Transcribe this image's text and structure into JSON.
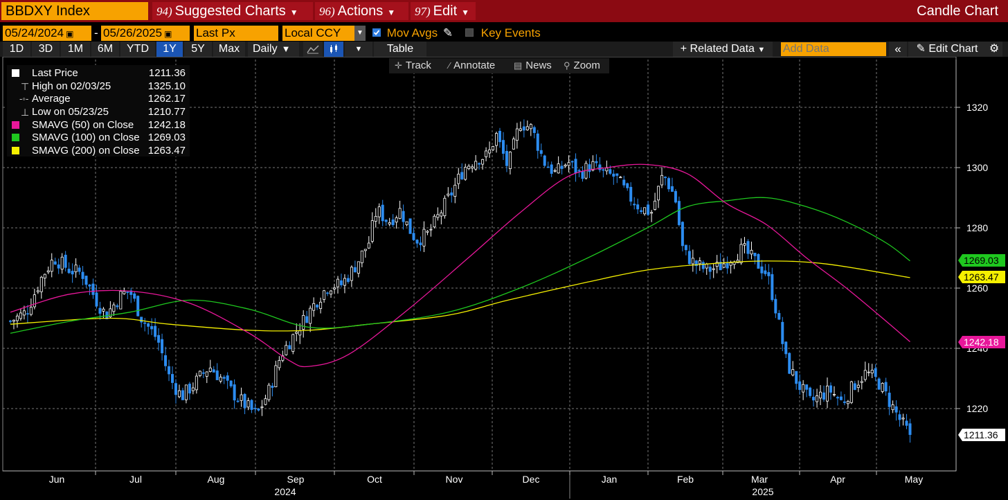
{
  "titlebar": {
    "ticker": "BBDXY Index",
    "menus": [
      {
        "num": "94)",
        "label": "Suggested Charts"
      },
      {
        "num": "96)",
        "label": "Actions"
      },
      {
        "num": "97)",
        "label": "Edit"
      }
    ],
    "chart_kind": "Candle Chart"
  },
  "controls": {
    "start_date": "05/24/2024",
    "end_date": "05/26/2025",
    "field": "Last Px",
    "currency": "Local CCY",
    "mov_avgs_label": "Mov Avgs",
    "mov_avgs_checked": true,
    "key_events_label": "Key Events",
    "key_events_checked": false
  },
  "range_buttons": [
    "1D",
    "3D",
    "1M",
    "6M",
    "YTD",
    "1Y",
    "5Y",
    "Max"
  ],
  "selected_range": "1Y",
  "periodicity": "Daily",
  "table_label": "Table",
  "related_data_label": "Related Data",
  "add_data_placeholder": "Add Data",
  "edit_chart_label": "Edit Chart",
  "chart_tools": [
    "Track",
    "Annotate",
    "News",
    "Zoom"
  ],
  "legend": [
    {
      "label": "Last Price",
      "value": "1211.36",
      "color": "#ffffff",
      "icon": "square-icon"
    },
    {
      "label": "High on 02/03/25",
      "value": "1325.10",
      "color": "#ffffff",
      "icon": "high-marker-icon"
    },
    {
      "label": "Average",
      "value": "1262.17",
      "color": "#ffffff",
      "icon": "average-line-icon"
    },
    {
      "label": "Low on 05/23/25",
      "value": "1210.77",
      "color": "#ffffff",
      "icon": "low-marker-icon"
    },
    {
      "label": "SMAVG (50)  on Close",
      "value": "1242.18",
      "color": "#e8179a",
      "icon": "square-icon"
    },
    {
      "label": "SMAVG (100)  on Close",
      "value": "1269.03",
      "color": "#1fc81f",
      "icon": "square-icon"
    },
    {
      "label": "SMAVG (200)  on Close",
      "value": "1263.47",
      "color": "#f5f000",
      "icon": "square-icon"
    }
  ],
  "chart_data": {
    "type": "candlestick",
    "title": "BBDXY Index",
    "y_ticks": [
      "1220",
      "1240",
      "1260",
      "1280",
      "1300",
      "1320"
    ],
    "ylim": [
      1205,
      1330
    ],
    "x_months": [
      "Jun",
      "Jul",
      "Aug",
      "Sep",
      "Oct",
      "Nov",
      "Dec",
      "Jan",
      "Feb",
      "Mar",
      "Apr",
      "May"
    ],
    "x_years": [
      "2024",
      "2025"
    ],
    "price_close_path": [
      [
        0,
        1249
      ],
      [
        0.4,
        1252
      ],
      [
        0.8,
        1264
      ],
      [
        1.1,
        1270
      ],
      [
        1.5,
        1266
      ],
      [
        1.8,
        1265
      ],
      [
        2.2,
        1255
      ],
      [
        2.4,
        1251
      ],
      [
        2.8,
        1258
      ],
      [
        3.0,
        1259
      ],
      [
        3.3,
        1250
      ],
      [
        3.7,
        1243
      ],
      [
        4.0,
        1230
      ],
      [
        4.3,
        1224
      ],
      [
        4.6,
        1228
      ],
      [
        5.0,
        1234
      ],
      [
        5.3,
        1230
      ],
      [
        5.6,
        1225
      ],
      [
        6.0,
        1220
      ],
      [
        6.2,
        1218
      ],
      [
        6.5,
        1226
      ],
      [
        6.8,
        1238
      ],
      [
        7.1,
        1244
      ],
      [
        7.4,
        1250
      ],
      [
        7.7,
        1256
      ],
      [
        8.0,
        1261
      ],
      [
        8.3,
        1261
      ],
      [
        8.6,
        1266
      ],
      [
        9.0,
        1275
      ],
      [
        9.2,
        1286
      ],
      [
        9.5,
        1282
      ],
      [
        9.8,
        1286
      ],
      [
        10.0,
        1280
      ],
      [
        10.2,
        1276
      ],
      [
        10.5,
        1278
      ],
      [
        10.8,
        1285
      ],
      [
        11.1,
        1292
      ],
      [
        11.4,
        1300
      ],
      [
        11.7,
        1303
      ],
      [
        12.0,
        1304
      ],
      [
        12.2,
        1311
      ],
      [
        12.5,
        1300
      ],
      [
        12.8,
        1315
      ],
      [
        13.1,
        1313
      ],
      [
        13.4,
        1302
      ],
      [
        13.7,
        1298
      ],
      [
        14.0,
        1302
      ],
      [
        14.3,
        1298
      ],
      [
        14.6,
        1301
      ],
      [
        14.9,
        1298
      ],
      [
        15.2,
        1297
      ],
      [
        15.5,
        1291
      ],
      [
        15.8,
        1287
      ],
      [
        16.1,
        1285
      ],
      [
        16.4,
        1298
      ],
      [
        16.7,
        1290
      ],
      [
        16.9,
        1272
      ],
      [
        17.2,
        1268
      ],
      [
        17.5,
        1266
      ],
      [
        17.8,
        1267
      ],
      [
        18.1,
        1270
      ],
      [
        18.4,
        1273
      ],
      [
        18.7,
        1269
      ],
      [
        19.0,
        1265
      ],
      [
        19.2,
        1255
      ],
      [
        19.5,
        1235
      ],
      [
        19.8,
        1228
      ],
      [
        20.1,
        1222
      ],
      [
        20.3,
        1224
      ],
      [
        20.6,
        1226
      ],
      [
        20.9,
        1222
      ],
      [
        21.2,
        1228
      ],
      [
        21.5,
        1232
      ],
      [
        21.8,
        1229
      ],
      [
        22.1,
        1222
      ],
      [
        22.4,
        1215
      ],
      [
        22.6,
        1211.36
      ]
    ],
    "sma50_path": [
      [
        0,
        1252
      ],
      [
        1.5,
        1258
      ],
      [
        3.0,
        1259
      ],
      [
        4.5,
        1255
      ],
      [
        6.0,
        1245
      ],
      [
        7.0,
        1236
      ],
      [
        7.5,
        1234
      ],
      [
        8.5,
        1238
      ],
      [
        10.0,
        1253
      ],
      [
        11.5,
        1270
      ],
      [
        12.8,
        1285
      ],
      [
        14.0,
        1297
      ],
      [
        15.0,
        1300
      ],
      [
        16.0,
        1301
      ],
      [
        17.0,
        1298
      ],
      [
        18.0,
        1288
      ],
      [
        19.0,
        1281
      ],
      [
        20.0,
        1270
      ],
      [
        21.0,
        1260
      ],
      [
        22.0,
        1249
      ],
      [
        22.6,
        1242.18
      ]
    ],
    "sma100_path": [
      [
        0,
        1245
      ],
      [
        1.5,
        1249
      ],
      [
        3.0,
        1252
      ],
      [
        4.5,
        1256
      ],
      [
        6.0,
        1253
      ],
      [
        7.5,
        1247
      ],
      [
        9.0,
        1248
      ],
      [
        11.0,
        1252
      ],
      [
        12.8,
        1260
      ],
      [
        14.5,
        1270
      ],
      [
        16.0,
        1280
      ],
      [
        17.0,
        1287
      ],
      [
        18.0,
        1289
      ],
      [
        19.0,
        1290
      ],
      [
        20.0,
        1287
      ],
      [
        21.0,
        1282
      ],
      [
        22.0,
        1275
      ],
      [
        22.6,
        1269.03
      ]
    ],
    "sma200_path": [
      [
        0,
        1248
      ],
      [
        2.5,
        1250
      ],
      [
        4.0,
        1248
      ],
      [
        6.0,
        1246
      ],
      [
        7.5,
        1246
      ],
      [
        9.0,
        1248
      ],
      [
        11.0,
        1251
      ],
      [
        12.5,
        1256
      ],
      [
        14.5,
        1262
      ],
      [
        16.0,
        1266
      ],
      [
        17.5,
        1268
      ],
      [
        19.0,
        1269
      ],
      [
        20.5,
        1268
      ],
      [
        22.6,
        1263.47
      ]
    ],
    "right_labels": [
      {
        "value": "1269.03",
        "color": "#1fc81f",
        "text_color": "#000000"
      },
      {
        "value": "1263.47",
        "color": "#f5f000",
        "text_color": "#000000"
      },
      {
        "value": "1242.18",
        "color": "#e8179a",
        "text_color": "#ffffff"
      },
      {
        "value": "1211.36",
        "color": "#ffffff",
        "text_color": "#000000"
      }
    ]
  }
}
